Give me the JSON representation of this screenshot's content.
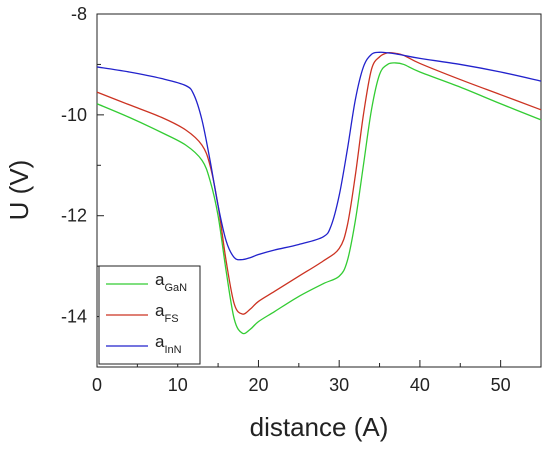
{
  "chart_data": {
    "type": "line",
    "title": "",
    "xlabel": "distance (A)",
    "ylabel": "U (V)",
    "xlim": [
      0,
      55
    ],
    "ylim": [
      -15,
      -8
    ],
    "x_ticks": [
      "0",
      "10",
      "20",
      "30",
      "40",
      "50"
    ],
    "y_ticks": [
      "-8",
      "-10",
      "-12",
      "-14"
    ],
    "grid": false,
    "legend_position": "bottom-left",
    "series": [
      {
        "name": "a",
        "subscript": "GaN",
        "color": "#33cc33",
        "x": [
          0,
          4,
          8,
          11,
          13,
          14,
          15,
          16,
          17,
          18,
          19,
          20,
          22,
          25,
          28,
          30,
          31,
          32,
          33,
          34,
          35,
          36,
          37,
          38,
          40,
          45,
          50,
          55
        ],
        "y": [
          -9.78,
          -10.05,
          -10.35,
          -10.6,
          -10.9,
          -11.3,
          -12.0,
          -13.1,
          -14.05,
          -14.33,
          -14.25,
          -14.1,
          -13.9,
          -13.6,
          -13.35,
          -13.2,
          -12.9,
          -12.1,
          -11.0,
          -9.9,
          -9.2,
          -9.0,
          -8.97,
          -9.0,
          -9.15,
          -9.45,
          -9.78,
          -10.1
        ]
      },
      {
        "name": "a",
        "subscript": "FS",
        "color": "#cc3322",
        "x": [
          0,
          4,
          8,
          11,
          13,
          14,
          15,
          16,
          17,
          18,
          19,
          20,
          22,
          25,
          28,
          30,
          31,
          32,
          33,
          34,
          35,
          36,
          37,
          38,
          40,
          45,
          50,
          55
        ],
        "y": [
          -9.55,
          -9.8,
          -10.05,
          -10.3,
          -10.6,
          -11.0,
          -11.8,
          -12.9,
          -13.75,
          -13.95,
          -13.85,
          -13.7,
          -13.5,
          -13.2,
          -12.9,
          -12.65,
          -12.2,
          -11.2,
          -10.0,
          -9.1,
          -8.85,
          -8.77,
          -8.78,
          -8.82,
          -8.98,
          -9.3,
          -9.6,
          -9.9
        ]
      },
      {
        "name": "a",
        "subscript": "InN",
        "color": "#2222cc",
        "x": [
          0,
          4,
          8,
          11,
          12,
          13,
          14,
          15,
          16,
          17,
          18,
          19,
          20,
          22,
          25,
          28,
          29,
          30,
          31,
          32,
          33,
          34,
          35,
          36,
          37,
          38,
          40,
          45,
          50,
          55
        ],
        "y": [
          -9.05,
          -9.15,
          -9.28,
          -9.42,
          -9.6,
          -10.1,
          -10.9,
          -11.8,
          -12.5,
          -12.83,
          -12.87,
          -12.83,
          -12.77,
          -12.68,
          -12.57,
          -12.42,
          -12.2,
          -11.6,
          -10.7,
          -9.7,
          -9.05,
          -8.8,
          -8.76,
          -8.77,
          -8.79,
          -8.82,
          -8.88,
          -9.0,
          -9.15,
          -9.33
        ]
      }
    ]
  }
}
